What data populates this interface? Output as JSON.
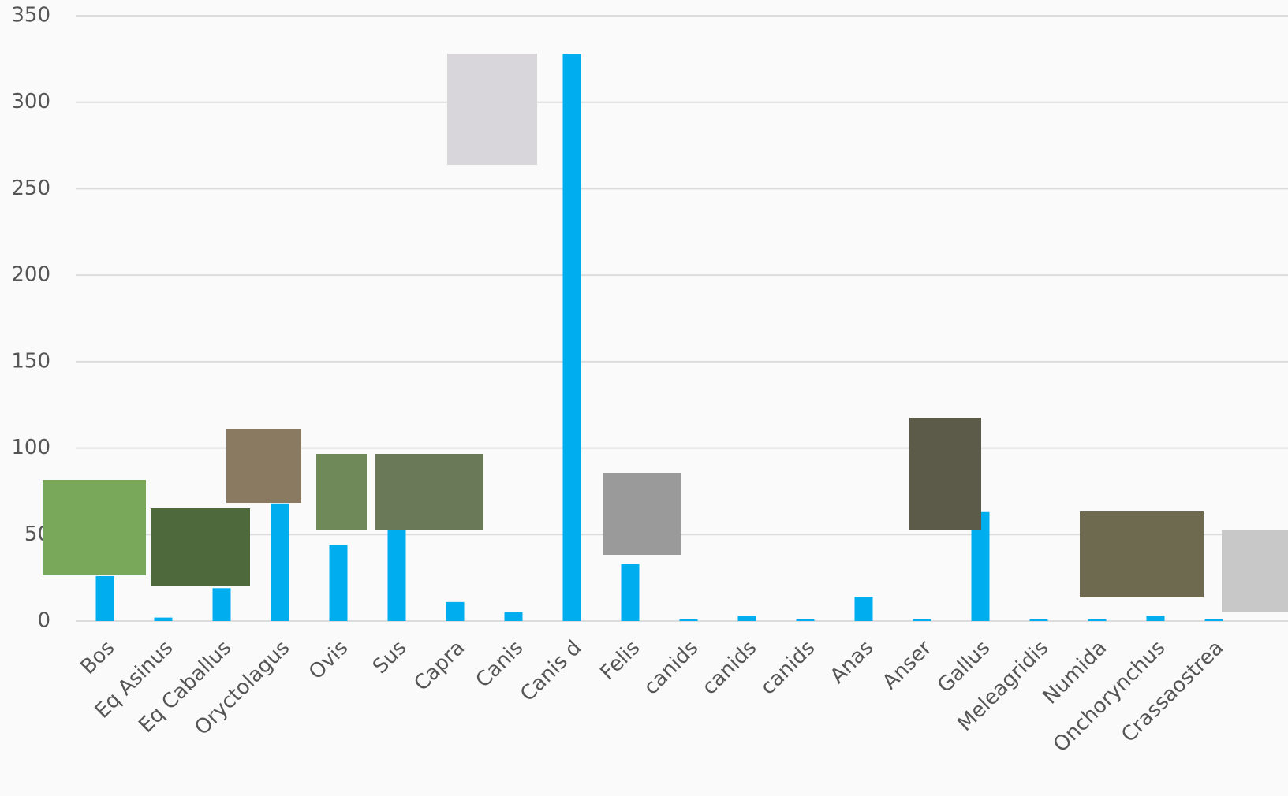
{
  "chart_data": {
    "type": "bar",
    "categories": [
      "Bos",
      "Eq Asinus",
      "Eq Caballus",
      "Oryctolagus",
      "Ovis",
      "Sus",
      "Capra",
      "Canis",
      "Canis d",
      "Felis",
      "canids",
      "canids",
      "canids",
      "Anas",
      "Anser",
      "Gallus",
      "Meleagridis",
      "Numida",
      "Onchorynchus",
      "Crassaostrea"
    ],
    "values": [
      26,
      2,
      19,
      68,
      44,
      53,
      11,
      5,
      328,
      33,
      1,
      3,
      1,
      14,
      1,
      63,
      1,
      1,
      3,
      1
    ],
    "color": "#00adef",
    "ylim": [
      0,
      350
    ],
    "yticks": [
      0,
      50,
      100,
      150,
      200,
      250,
      300,
      350
    ],
    "grid": true
  }
}
